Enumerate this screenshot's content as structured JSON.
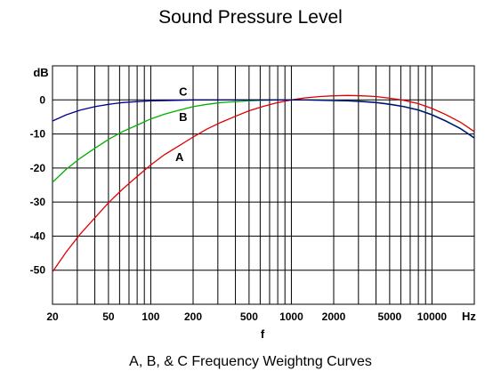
{
  "chart_data": {
    "type": "line",
    "title": "Sound Pressure Level",
    "caption": "A, B, & C  Frequency Weightng Curves",
    "xlabel": "f",
    "ylabel": "dB",
    "x_unit": "Hz",
    "x_scale": "log",
    "xlim": [
      20,
      20000
    ],
    "ylim": [
      -60,
      10
    ],
    "grid": true,
    "x_ticks": [
      {
        "value": 20,
        "label": "20"
      },
      {
        "value": 50,
        "label": "50"
      },
      {
        "value": 100,
        "label": "100"
      },
      {
        "value": 200,
        "label": "200"
      },
      {
        "value": 500,
        "label": "500"
      },
      {
        "value": 1000,
        "label": "1000"
      },
      {
        "value": 2000,
        "label": "2000"
      },
      {
        "value": 5000,
        "label": "5000"
      },
      {
        "value": 10000,
        "label": "10000"
      }
    ],
    "y_ticks": [
      {
        "value": 0,
        "label": "0"
      },
      {
        "value": -10,
        "label": "-10"
      },
      {
        "value": -20,
        "label": "-20"
      },
      {
        "value": -30,
        "label": "-30"
      },
      {
        "value": -40,
        "label": "-40"
      },
      {
        "value": -50,
        "label": "-50"
      }
    ],
    "series": [
      {
        "name": "A",
        "color": "#e00000",
        "label_at": [
          160,
          -18
        ],
        "points": [
          [
            20,
            -50.5
          ],
          [
            25,
            -44.7
          ],
          [
            31.5,
            -39.4
          ],
          [
            40,
            -34.6
          ],
          [
            50,
            -30.2
          ],
          [
            63,
            -26.2
          ],
          [
            80,
            -22.5
          ],
          [
            100,
            -19.1
          ],
          [
            125,
            -16.1
          ],
          [
            160,
            -13.4
          ],
          [
            200,
            -10.9
          ],
          [
            250,
            -8.6
          ],
          [
            315,
            -6.6
          ],
          [
            400,
            -4.8
          ],
          [
            500,
            -3.2
          ],
          [
            630,
            -1.9
          ],
          [
            800,
            -0.8
          ],
          [
            1000,
            0
          ],
          [
            1250,
            0.6
          ],
          [
            1600,
            1.0
          ],
          [
            2000,
            1.2
          ],
          [
            2500,
            1.3
          ],
          [
            3150,
            1.2
          ],
          [
            4000,
            1.0
          ],
          [
            5000,
            0.5
          ],
          [
            6300,
            -0.1
          ],
          [
            8000,
            -1.1
          ],
          [
            10000,
            -2.5
          ],
          [
            12500,
            -4.3
          ],
          [
            16000,
            -6.6
          ],
          [
            20000,
            -9.3
          ]
        ]
      },
      {
        "name": "B",
        "color": "#00b000",
        "label_at": [
          170,
          -6.2
        ],
        "points": [
          [
            20,
            -24.2
          ],
          [
            25,
            -20.4
          ],
          [
            31.5,
            -17.1
          ],
          [
            40,
            -14.2
          ],
          [
            50,
            -11.6
          ],
          [
            63,
            -9.3
          ],
          [
            80,
            -7.4
          ],
          [
            100,
            -5.6
          ],
          [
            125,
            -4.2
          ],
          [
            160,
            -3.0
          ],
          [
            200,
            -2.0
          ],
          [
            250,
            -1.3
          ],
          [
            315,
            -0.8
          ],
          [
            400,
            -0.5
          ],
          [
            500,
            -0.3
          ],
          [
            630,
            -0.1
          ],
          [
            800,
            0
          ],
          [
            1000,
            0
          ],
          [
            1250,
            0
          ],
          [
            1600,
            0
          ],
          [
            2000,
            -0.1
          ],
          [
            2500,
            -0.2
          ],
          [
            3150,
            -0.4
          ],
          [
            4000,
            -0.7
          ],
          [
            5000,
            -1.2
          ],
          [
            6300,
            -1.9
          ],
          [
            8000,
            -2.9
          ],
          [
            10000,
            -4.3
          ],
          [
            12500,
            -6.1
          ],
          [
            16000,
            -8.4
          ],
          [
            20000,
            -11.1
          ]
        ]
      },
      {
        "name": "C",
        "color": "#000090",
        "label_at": [
          170,
          1.2
        ],
        "points": [
          [
            20,
            -6.2
          ],
          [
            25,
            -4.4
          ],
          [
            31.5,
            -3.0
          ],
          [
            40,
            -2.0
          ],
          [
            50,
            -1.3
          ],
          [
            63,
            -0.8
          ],
          [
            80,
            -0.5
          ],
          [
            100,
            -0.3
          ],
          [
            125,
            -0.2
          ],
          [
            160,
            -0.1
          ],
          [
            200,
            0
          ],
          [
            250,
            0
          ],
          [
            315,
            0
          ],
          [
            400,
            0
          ],
          [
            500,
            0
          ],
          [
            630,
            0
          ],
          [
            800,
            0
          ],
          [
            1000,
            0
          ],
          [
            1250,
            0
          ],
          [
            1600,
            -0.1
          ],
          [
            2000,
            -0.2
          ],
          [
            2500,
            -0.3
          ],
          [
            3150,
            -0.5
          ],
          [
            4000,
            -0.8
          ],
          [
            5000,
            -1.3
          ],
          [
            6300,
            -2.0
          ],
          [
            8000,
            -3.0
          ],
          [
            10000,
            -4.4
          ],
          [
            12500,
            -6.2
          ],
          [
            16000,
            -8.5
          ],
          [
            20000,
            -11.2
          ]
        ]
      }
    ]
  }
}
